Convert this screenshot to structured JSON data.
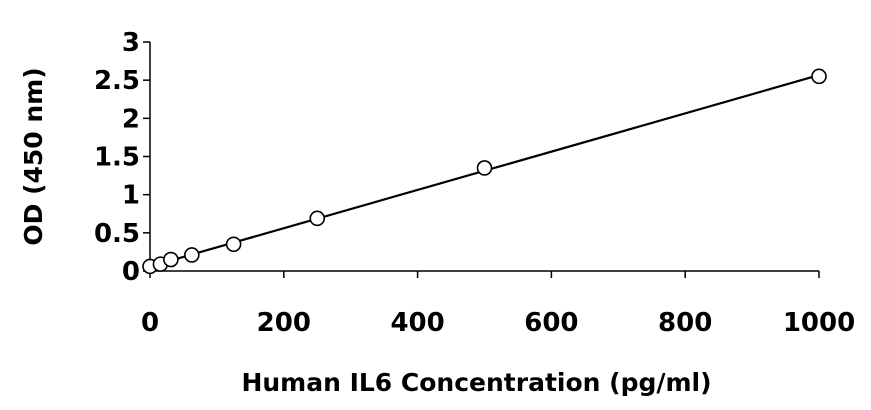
{
  "chart_data": {
    "type": "scatter",
    "xlabel": "Human IL6 Concentration (pg/ml)",
    "ylabel": "OD (450 nm)",
    "xlim": [
      0,
      1000
    ],
    "ylim": [
      0,
      3
    ],
    "x_ticks": [
      0,
      200,
      400,
      600,
      800,
      1000
    ],
    "y_ticks": [
      0,
      0.5,
      1,
      1.5,
      2,
      2.5,
      3
    ],
    "x_tick_labels": [
      "0",
      "200",
      "400",
      "600",
      "800",
      "1000"
    ],
    "y_tick_labels": [
      "0",
      "0.5",
      "1",
      "1.5",
      "2",
      "2.5",
      "3"
    ],
    "grid": false,
    "legend": "none",
    "series": [
      {
        "x": [
          0,
          15.6,
          31.2,
          62.5,
          125,
          250,
          500,
          1000
        ],
        "y": [
          0.06,
          0.09,
          0.15,
          0.21,
          0.35,
          0.69,
          1.35,
          2.55
        ],
        "marker": "open-circle",
        "trendline": "linear"
      }
    ],
    "colors": {
      "marker_stroke": "#000000",
      "marker_fill": "#ffffff",
      "line": "#000000"
    }
  }
}
